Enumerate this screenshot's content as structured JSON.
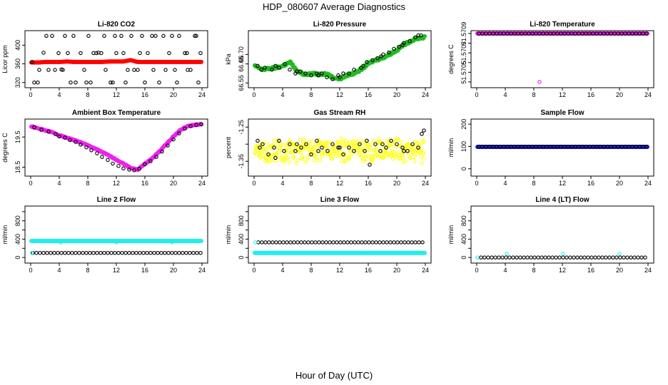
{
  "page": {
    "title": "HDP_080607  Average Diagnostics",
    "xlabel": "Hour of Day (UTC)"
  },
  "chart_data": [
    {
      "type": "scatter",
      "title": "Li-820 CO2",
      "ylabel": "Licor ppm",
      "xlim": [
        0,
        24
      ],
      "xticks": [
        0,
        4,
        8,
        12,
        16,
        20,
        24
      ],
      "ylim": [
        315,
        425
      ],
      "yticks": [
        320,
        360,
        400
      ],
      "ytick_labels": [
        "320",
        "360",
        "400"
      ],
      "series": [
        {
          "name": "average",
          "color": "#ff0000",
          "filled": true,
          "x_start": 0.1,
          "x_end": 23.9,
          "x_step": 0.1,
          "values_y": [
            363,
            363,
            364,
            364,
            364,
            365,
            364,
            364,
            364,
            364,
            364,
            365,
            365,
            365,
            368,
            364,
            364,
            364,
            364,
            364,
            364,
            364,
            364,
            364,
            364
          ]
        },
        {
          "name": "samples",
          "color": "#000000",
          "filled": false,
          "x": [
            0.5,
            1.2,
            2.2,
            3.4,
            4.3,
            5.2,
            0.2,
            1.8,
            3.0,
            3.9,
            4.8,
            5.6,
            6.3,
            7.5,
            8.1,
            8.8,
            9.5,
            10.3,
            11.2,
            12.0,
            12.7,
            13.6,
            14.1,
            15.0,
            15.6,
            16.4,
            17.2,
            18.0,
            18.6,
            19.4,
            20.2,
            20.8,
            21.6,
            22.4,
            23.2,
            23.8,
            6.0,
            7.8,
            9.2,
            10.5,
            11.8,
            13.0,
            14.5,
            16.0,
            17.5,
            18.9,
            20.5,
            22.0,
            23.5,
            1.0,
            2.5,
            4.5,
            7.0,
            8.4,
            9.9,
            11.5,
            13.3,
            15.3,
            17.0,
            19.8,
            21.9,
            23.0
          ],
          "y": [
            320,
            347,
            420,
            347,
            348,
            383,
            364,
            384,
            420,
            383,
            420,
            320,
            320,
            347,
            420,
            383,
            384,
            420,
            320,
            383,
            420,
            347,
            420,
            347,
            420,
            383,
            347,
            320,
            420,
            383,
            347,
            420,
            383,
            347,
            420,
            383,
            420,
            320,
            383,
            347,
            420,
            383,
            347,
            320,
            420,
            347,
            320,
            347,
            320,
            320,
            347,
            347,
            383,
            320,
            383,
            320,
            320,
            383,
            420,
            420,
            383,
            420
          ]
        }
      ]
    },
    {
      "type": "scatter",
      "title": "Li-820 Pressure",
      "ylabel": "kPa",
      "xlim": [
        0,
        24
      ],
      "xticks": [
        0,
        4,
        8,
        12,
        16,
        20,
        24
      ],
      "ylim": [
        66.54,
        66.81
      ],
      "yticks": [
        66.55,
        66.65,
        66.7
      ],
      "ytick_labels": [
        "66.55",
        "66.65",
        "66.70"
      ],
      "series": [
        {
          "name": "average",
          "color": "#22bb22",
          "filled": true,
          "x_start": 0.1,
          "x_end": 23.9,
          "x_step": 0.1,
          "values_y": [
            66.64,
            66.62,
            66.625,
            66.63,
            66.64,
            66.66,
            66.61,
            66.595,
            66.6,
            66.595,
            66.6,
            66.58,
            66.57,
            66.59,
            66.6,
            66.62,
            66.65,
            66.67,
            66.68,
            66.7,
            66.72,
            66.75,
            66.77,
            66.785,
            66.79
          ]
        },
        {
          "name": "samples",
          "color": "#000000",
          "filled": false,
          "x": [
            0.5,
            1.5,
            2.5,
            3.5,
            4.3,
            5.0,
            5.8,
            6.5,
            7.2,
            8.0,
            8.8,
            9.5,
            10.2,
            11.0,
            11.8,
            12.5,
            13.3,
            14.0,
            15.0,
            15.8,
            16.6,
            17.3,
            18.1,
            18.9,
            19.6,
            20.3,
            21.0,
            21.8,
            22.6,
            23.4,
            1.0,
            3.0,
            6.0,
            9.0,
            12.0,
            15.3,
            17.8,
            20.8,
            23.0
          ],
          "y": [
            66.64,
            66.63,
            66.62,
            66.63,
            66.65,
            66.62,
            66.6,
            66.61,
            66.6,
            66.59,
            66.6,
            66.6,
            66.58,
            66.57,
            66.59,
            66.6,
            66.6,
            66.62,
            66.63,
            66.66,
            66.67,
            66.68,
            66.7,
            66.71,
            66.73,
            66.74,
            66.76,
            66.77,
            66.79,
            66.8,
            66.62,
            66.64,
            66.61,
            66.59,
            66.58,
            66.64,
            66.69,
            66.75,
            66.8
          ]
        }
      ]
    },
    {
      "type": "scatter",
      "title": "Li-820 Temperature",
      "ylabel": "degrees C",
      "xlim": [
        0,
        24
      ],
      "xticks": [
        0,
        4,
        8,
        12,
        16,
        20,
        24
      ],
      "ylim": [
        51.57037,
        51.5709
      ],
      "yticks": [
        51.5704,
        51.5705,
        51.5706,
        51.5707,
        51.5708,
        51.5709
      ],
      "ytick_labels": [
        "",
        "51.5705",
        "",
        "51.5707",
        "",
        "51.5709"
      ],
      "series": [
        {
          "name": "average",
          "color": "#ee22ee",
          "filled": true,
          "x_start": 0.1,
          "x_end": 23.9,
          "x_step": 0.1,
          "values_y": [
            51.5709,
            51.5709,
            51.5709,
            51.5709,
            51.5709,
            51.5709,
            51.5709,
            51.5709,
            51.5709,
            51.5709,
            51.5709,
            51.5709,
            51.5709,
            51.5709,
            51.5709,
            51.5709,
            51.5709,
            51.5709,
            51.5709,
            51.5709,
            51.5709,
            51.5709,
            51.5709,
            51.5709,
            51.5709
          ]
        },
        {
          "name": "samples",
          "color": "#000000",
          "filled": false,
          "x_start": 0.3,
          "x_end": 23.9,
          "x_step": 0.5,
          "values_y": [
            51.5709,
            51.5709
          ]
        },
        {
          "name": "outlier",
          "color": "#ee22ee",
          "filled": false,
          "x": [
            8.8
          ],
          "y": [
            51.5704
          ]
        }
      ]
    },
    {
      "type": "scatter",
      "title": "Ambient Box Temperature",
      "ylabel": "degrees C",
      "xlim": [
        0,
        24
      ],
      "xticks": [
        0,
        4,
        8,
        12,
        16,
        20,
        24
      ],
      "ylim": [
        18.3,
        20.0
      ],
      "yticks": [
        18.5,
        19.5
      ],
      "ytick_labels": [
        "18.5",
        "19.5"
      ],
      "series": [
        {
          "name": "average",
          "color": "#ee22ee",
          "filled": true,
          "x_start": 0.1,
          "x_end": 23.9,
          "x_step": 0.1,
          "values_y": [
            19.85,
            19.78,
            19.72,
            19.65,
            19.55,
            19.48,
            19.4,
            19.32,
            19.22,
            19.12,
            19.0,
            18.88,
            18.75,
            18.62,
            18.48,
            18.42,
            18.6,
            18.78,
            19.0,
            19.25,
            19.5,
            19.72,
            19.85,
            19.9,
            19.92
          ]
        },
        {
          "name": "samples",
          "color": "#000000",
          "filled": false,
          "x": [
            0.5,
            1.5,
            2.5,
            3.5,
            4.0,
            4.8,
            5.5,
            6.3,
            7.0,
            7.8,
            8.5,
            9.3,
            10.0,
            10.8,
            11.5,
            12.3,
            13.0,
            13.8,
            14.5,
            15.2,
            16.0,
            16.8,
            17.6,
            18.4,
            19.2,
            20.0,
            20.8,
            21.6,
            22.4,
            23.2,
            23.9
          ],
          "y": [
            19.82,
            19.74,
            19.68,
            19.6,
            19.52,
            19.48,
            19.4,
            19.34,
            19.25,
            19.16,
            19.06,
            18.96,
            18.84,
            18.74,
            18.62,
            18.54,
            18.46,
            18.42,
            18.4,
            18.45,
            18.6,
            18.7,
            18.84,
            19.02,
            19.22,
            19.42,
            19.62,
            19.78,
            19.86,
            19.9,
            19.92
          ]
        }
      ]
    },
    {
      "type": "scatter",
      "title": "Gas Stream RH",
      "ylabel": "percent",
      "xlim": [
        0,
        24
      ],
      "xticks": [
        0,
        4,
        8,
        12,
        16,
        20,
        24
      ],
      "ylim": [
        -1.385,
        -1.235
      ],
      "yticks": [
        -1.35,
        -1.3,
        -1.25
      ],
      "ytick_labels": [
        "-1.35",
        "",
        "-1.25"
      ],
      "series": [
        {
          "name": "average",
          "color": "#ffff22",
          "filled": false,
          "scatter_noise": true,
          "x_start": 0.1,
          "x_end": 23.9,
          "x_step": 0.06,
          "center": -1.32,
          "spread": 0.03
        },
        {
          "name": "samples",
          "color": "#000000",
          "filled": false,
          "x": [
            0.5,
            1.2,
            2.0,
            2.8,
            3.5,
            4.2,
            5.0,
            5.8,
            6.6,
            7.3,
            8.0,
            8.8,
            9.5,
            10.3,
            11.0,
            11.8,
            12.5,
            13.3,
            14.0,
            14.8,
            15.5,
            16.2,
            17.0,
            17.7,
            18.5,
            19.2,
            20.0,
            20.8,
            21.5,
            22.2,
            23.0,
            23.8,
            0.8,
            3.0,
            6.0,
            9.0,
            12.0,
            15.8,
            18.0,
            21.0,
            23.5
          ],
          "y": [
            -1.29,
            -1.3,
            -1.33,
            -1.31,
            -1.29,
            -1.32,
            -1.3,
            -1.32,
            -1.31,
            -1.3,
            -1.33,
            -1.29,
            -1.31,
            -1.32,
            -1.3,
            -1.31,
            -1.33,
            -1.31,
            -1.32,
            -1.3,
            -1.32,
            -1.36,
            -1.3,
            -1.32,
            -1.31,
            -1.29,
            -1.3,
            -1.31,
            -1.32,
            -1.3,
            -1.31,
            -1.26,
            -1.31,
            -1.34,
            -1.3,
            -1.32,
            -1.31,
            -1.29,
            -1.3,
            -1.32,
            -1.27
          ]
        }
      ]
    },
    {
      "type": "scatter",
      "title": "Sample Flow",
      "ylabel": "ml/min",
      "xlim": [
        0,
        24
      ],
      "xticks": [
        0,
        4,
        8,
        12,
        16,
        20,
        24
      ],
      "ylim": [
        -20,
        210
      ],
      "yticks": [
        0,
        100,
        200
      ],
      "ytick_labels": [
        "0",
        "100",
        "200"
      ],
      "series": [
        {
          "name": "average",
          "color": "#2222dd",
          "filled": true,
          "x_start": 0.1,
          "x_end": 23.9,
          "x_step": 0.1,
          "values_y": [
            98,
            98
          ]
        },
        {
          "name": "samples",
          "color": "#000000",
          "filled": false,
          "x_start": 0.3,
          "x_end": 23.9,
          "x_step": 0.5,
          "values_y": [
            99,
            99
          ]
        }
      ]
    },
    {
      "type": "scatter",
      "title": "Line 2 Flow",
      "ylabel": "ml/min",
      "xlim": [
        0,
        24
      ],
      "xticks": [
        0,
        4,
        8,
        12,
        16,
        20,
        24
      ],
      "ylim": [
        -60,
        1060
      ],
      "yticks": [
        0,
        200,
        400,
        600,
        800,
        1000
      ],
      "ytick_labels": [
        "0",
        "",
        "400",
        "",
        "800",
        ""
      ],
      "series": [
        {
          "name": "average",
          "color": "#22eeee",
          "filled": true,
          "x_start": 0.1,
          "x_end": 23.9,
          "x_step": 0.1,
          "values_y": [
            360,
            360
          ]
        },
        {
          "name": "samples",
          "color": "#000000",
          "filled": false,
          "x_start": 0.3,
          "x_end": 23.9,
          "x_step": 0.5,
          "values_y": [
            100,
            100
          ]
        },
        {
          "name": "outliers",
          "color": "#22eeee",
          "filled": false,
          "x": [
            0.2,
            4.2,
            12.0,
            19.8
          ],
          "y": [
            100,
            330,
            330,
            330
          ]
        }
      ]
    },
    {
      "type": "scatter",
      "title": "Line 3 Flow",
      "ylabel": "ml/min",
      "xlim": [
        0,
        24
      ],
      "xticks": [
        0,
        4,
        8,
        12,
        16,
        20,
        24
      ],
      "ylim": [
        -60,
        1060
      ],
      "yticks": [
        0,
        200,
        400,
        600,
        800,
        1000
      ],
      "ytick_labels": [
        "0",
        "",
        "400",
        "",
        "800",
        ""
      ],
      "series": [
        {
          "name": "average",
          "color": "#22eeee",
          "filled": true,
          "x_start": 0.1,
          "x_end": 23.9,
          "x_step": 0.1,
          "values_y": [
            100,
            100
          ]
        },
        {
          "name": "samples",
          "color": "#000000",
          "filled": false,
          "x_start": 0.6,
          "x_end": 23.9,
          "x_step": 0.5,
          "values_y": [
            330,
            330
          ]
        },
        {
          "name": "outliers",
          "color": "#22eeee",
          "filled": false,
          "x": [
            0.2
          ],
          "y": [
            330
          ]
        }
      ]
    },
    {
      "type": "scatter",
      "title": "Line 4 (LT) Flow",
      "ylabel": "ml/min",
      "xlim": [
        0,
        24
      ],
      "xticks": [
        0,
        4,
        8,
        12,
        16,
        20,
        24
      ],
      "ylim": [
        -60,
        1060
      ],
      "yticks": [
        0,
        200,
        400,
        600,
        800,
        1000
      ],
      "ytick_labels": [
        "0",
        "",
        "400",
        "",
        "800",
        ""
      ],
      "series": [
        {
          "name": "average",
          "color": "#22eeee",
          "filled": false,
          "x": [
            0.1,
            4.2,
            12.1,
            20.0
          ],
          "y": [
            0,
            80,
            80,
            80
          ]
        },
        {
          "name": "samples",
          "color": "#000000",
          "filled": false,
          "x_start": 0.6,
          "x_end": 23.9,
          "x_step": 0.5,
          "values_y": [
            0,
            0
          ]
        }
      ]
    }
  ]
}
